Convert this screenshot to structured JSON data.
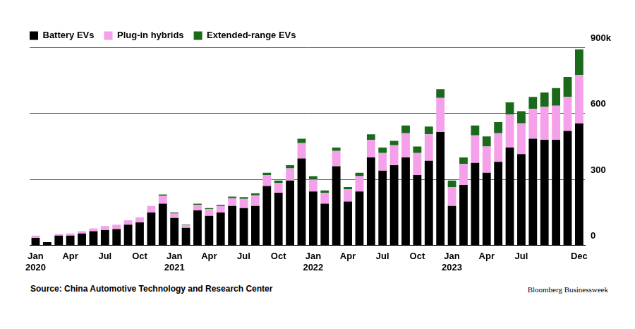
{
  "chart_data": {
    "type": "bar",
    "stacked": true,
    "grid": true,
    "legend": "top-left",
    "categories": [
      "Jan\n2020",
      null,
      null,
      "Apr",
      null,
      null,
      "Jul",
      null,
      null,
      "Oct",
      null,
      null,
      "Jan\n2021",
      null,
      null,
      "Apr",
      null,
      null,
      "Jul",
      null,
      null,
      "Oct",
      null,
      null,
      "Jan\n2022",
      null,
      null,
      "Apr",
      null,
      null,
      "Jul",
      null,
      null,
      "Oct",
      null,
      null,
      "Jan\n2023",
      null,
      null,
      "Apr",
      null,
      null,
      "Jul",
      null,
      null,
      null,
      null,
      "Dec"
    ],
    "series": [
      {
        "name": "Battery EVs",
        "color": "#000000",
        "values": [
          35,
          15,
          45,
          45,
          55,
          65,
          70,
          75,
          95,
          105,
          150,
          190,
          125,
          80,
          160,
          135,
          150,
          180,
          170,
          180,
          270,
          240,
          295,
          395,
          245,
          190,
          360,
          200,
          245,
          400,
          340,
          365,
          400,
          320,
          385,
          515,
          180,
          275,
          375,
          330,
          380,
          445,
          415,
          485,
          480,
          480,
          520,
          555
        ]
      },
      {
        "name": "Plug-in hybrids",
        "color": "#f5a0ea",
        "values": [
          10,
          0,
          7,
          10,
          10,
          13,
          18,
          20,
          20,
          23,
          30,
          37,
          20,
          12,
          25,
          30,
          30,
          35,
          42,
          48,
          50,
          45,
          55,
          70,
          55,
          50,
          70,
          55,
          70,
          80,
          80,
          90,
          110,
          100,
          120,
          155,
          85,
          95,
          125,
          120,
          130,
          150,
          140,
          135,
          150,
          155,
          155,
          220
        ]
      },
      {
        "name": "Extended-range EVs",
        "color": "#1b6a1b",
        "values": [
          0,
          0,
          0,
          0,
          0,
          0,
          0,
          0,
          0,
          0,
          0,
          5,
          5,
          3,
          5,
          5,
          5,
          7,
          8,
          9,
          10,
          10,
          15,
          20,
          15,
          10,
          15,
          10,
          15,
          25,
          25,
          20,
          35,
          30,
          35,
          40,
          30,
          30,
          45,
          45,
          50,
          55,
          55,
          55,
          65,
          80,
          90,
          115
        ]
      }
    ],
    "ylim": [
      0,
      900
    ],
    "yticks": [
      0,
      300,
      600,
      {
        "value": 900,
        "label": "900k"
      }
    ],
    "annotations": [
      "Source: China Automotive Technology and Research Center",
      "Bloomberg Businessweek"
    ]
  }
}
